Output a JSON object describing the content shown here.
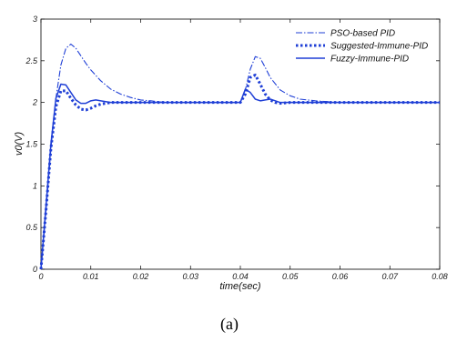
{
  "chart_data": {
    "type": "line",
    "title": "",
    "xlabel": "time(sec)",
    "ylabel": "v0(V)",
    "xlim": [
      0,
      0.08
    ],
    "ylim": [
      0,
      3
    ],
    "xticks": [
      0,
      0.01,
      0.02,
      0.03,
      0.04,
      0.05,
      0.06,
      0.07,
      0.08
    ],
    "xtick_labels": [
      "0",
      "0.01",
      "0.02",
      "0.03",
      "0.04",
      "0.05",
      "0.06",
      "0.07",
      "0.08"
    ],
    "yticks": [
      0,
      0.5,
      1,
      1.5,
      2,
      2.5,
      3
    ],
    "ytick_labels": [
      "0",
      "0.5",
      "1",
      "1.5",
      "2",
      "2.5",
      "3"
    ],
    "grid": false,
    "legend_position": "top-right",
    "series": [
      {
        "name": "PSO-based PID",
        "style": "dashdot",
        "color": "#1f3fd6",
        "x": [
          0,
          0.001,
          0.002,
          0.003,
          0.004,
          0.005,
          0.006,
          0.007,
          0.008,
          0.009,
          0.01,
          0.012,
          0.014,
          0.016,
          0.018,
          0.02,
          0.022,
          0.025,
          0.03,
          0.035,
          0.04,
          0.041,
          0.042,
          0.043,
          0.044,
          0.045,
          0.046,
          0.048,
          0.05,
          0.052,
          0.055,
          0.06,
          0.07,
          0.08
        ],
        "y": [
          0,
          0.7,
          1.45,
          2.05,
          2.45,
          2.65,
          2.7,
          2.65,
          2.56,
          2.47,
          2.39,
          2.26,
          2.16,
          2.1,
          2.06,
          2.03,
          2.02,
          2.0,
          2.0,
          2.0,
          2.0,
          2.15,
          2.4,
          2.55,
          2.53,
          2.42,
          2.3,
          2.15,
          2.08,
          2.04,
          2.02,
          2.0,
          2.0,
          2.0
        ]
      },
      {
        "name": "Suggested-Immune-PID",
        "style": "dotted",
        "color": "#1f3fd6",
        "x": [
          0,
          0.001,
          0.002,
          0.003,
          0.004,
          0.005,
          0.006,
          0.007,
          0.008,
          0.009,
          0.01,
          0.011,
          0.012,
          0.014,
          0.016,
          0.02,
          0.03,
          0.04,
          0.041,
          0.042,
          0.043,
          0.044,
          0.045,
          0.046,
          0.047,
          0.048,
          0.05,
          0.055,
          0.06,
          0.08
        ],
        "y": [
          0,
          0.7,
          1.45,
          1.95,
          2.14,
          2.14,
          2.05,
          1.97,
          1.92,
          1.91,
          1.93,
          1.96,
          1.98,
          2.0,
          2.0,
          2.0,
          2.0,
          2.0,
          2.1,
          2.3,
          2.33,
          2.22,
          2.1,
          2.03,
          2.0,
          1.99,
          2.0,
          2.0,
          2.0,
          2.0
        ]
      },
      {
        "name": "Fuzzy-Immune-PID",
        "style": "solid",
        "color": "#1f3fd6",
        "x": [
          0,
          0.001,
          0.002,
          0.003,
          0.004,
          0.005,
          0.006,
          0.007,
          0.008,
          0.009,
          0.01,
          0.011,
          0.012,
          0.013,
          0.014,
          0.016,
          0.02,
          0.03,
          0.04,
          0.041,
          0.042,
          0.043,
          0.044,
          0.045,
          0.046,
          0.047,
          0.048,
          0.05,
          0.06,
          0.08
        ],
        "y": [
          0,
          0.75,
          1.5,
          2.05,
          2.22,
          2.21,
          2.12,
          2.03,
          1.99,
          1.99,
          2.02,
          2.03,
          2.02,
          2.01,
          2.0,
          2.0,
          2.0,
          2.0,
          2.0,
          2.16,
          2.12,
          2.04,
          2.02,
          2.03,
          2.04,
          2.02,
          2.0,
          2.0,
          2.0,
          2.0
        ]
      }
    ]
  },
  "caption": "(a)"
}
